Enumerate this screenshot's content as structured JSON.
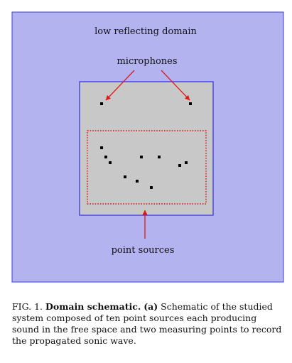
{
  "figure": {
    "outer_domain_label": "low reflecting domain",
    "microphones_label": "microphones",
    "point_sources_label": "point sources",
    "colors": {
      "outer_fill": "#b3b3f0",
      "outer_stroke": "#3a3ad8",
      "inner_fill": "#c8c8c8",
      "inner_stroke": "#2e2ee0",
      "dotted_region": "#dd1111",
      "arrow": "#e01818",
      "point": "#000000"
    },
    "microphone_count": 2,
    "source_count": 10
  },
  "caption": {
    "prefix": "FIG. 1.",
    "title": "Domain schematic.",
    "panel": "(a)",
    "body": "Schematic of the studied system composed of ten point sources each producing sound in the free space and two measuring points to record the propagated sonic wave."
  }
}
